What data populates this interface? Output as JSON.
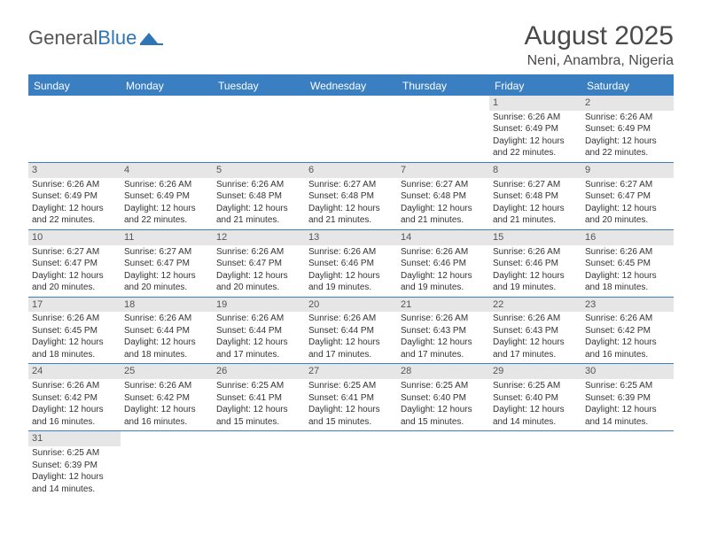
{
  "logo": {
    "general": "General",
    "blue": "Blue"
  },
  "title": {
    "month": "August 2025",
    "location": "Neni, Anambra, Nigeria"
  },
  "colors": {
    "header_bar": "#3a7fc2",
    "day_header_bg": "#e6e6e6",
    "logo_blue": "#2f75b5",
    "text": "#333333",
    "row_divider": "#3a7fc2"
  },
  "weekdays": [
    "Sunday",
    "Monday",
    "Tuesday",
    "Wednesday",
    "Thursday",
    "Friday",
    "Saturday"
  ],
  "weeks": [
    [
      null,
      null,
      null,
      null,
      null,
      {
        "n": "1",
        "sunrise": "Sunrise: 6:26 AM",
        "sunset": "Sunset: 6:49 PM",
        "day1": "Daylight: 12 hours",
        "day2": "and 22 minutes."
      },
      {
        "n": "2",
        "sunrise": "Sunrise: 6:26 AM",
        "sunset": "Sunset: 6:49 PM",
        "day1": "Daylight: 12 hours",
        "day2": "and 22 minutes."
      }
    ],
    [
      {
        "n": "3",
        "sunrise": "Sunrise: 6:26 AM",
        "sunset": "Sunset: 6:49 PM",
        "day1": "Daylight: 12 hours",
        "day2": "and 22 minutes."
      },
      {
        "n": "4",
        "sunrise": "Sunrise: 6:26 AM",
        "sunset": "Sunset: 6:49 PM",
        "day1": "Daylight: 12 hours",
        "day2": "and 22 minutes."
      },
      {
        "n": "5",
        "sunrise": "Sunrise: 6:26 AM",
        "sunset": "Sunset: 6:48 PM",
        "day1": "Daylight: 12 hours",
        "day2": "and 21 minutes."
      },
      {
        "n": "6",
        "sunrise": "Sunrise: 6:27 AM",
        "sunset": "Sunset: 6:48 PM",
        "day1": "Daylight: 12 hours",
        "day2": "and 21 minutes."
      },
      {
        "n": "7",
        "sunrise": "Sunrise: 6:27 AM",
        "sunset": "Sunset: 6:48 PM",
        "day1": "Daylight: 12 hours",
        "day2": "and 21 minutes."
      },
      {
        "n": "8",
        "sunrise": "Sunrise: 6:27 AM",
        "sunset": "Sunset: 6:48 PM",
        "day1": "Daylight: 12 hours",
        "day2": "and 21 minutes."
      },
      {
        "n": "9",
        "sunrise": "Sunrise: 6:27 AM",
        "sunset": "Sunset: 6:47 PM",
        "day1": "Daylight: 12 hours",
        "day2": "and 20 minutes."
      }
    ],
    [
      {
        "n": "10",
        "sunrise": "Sunrise: 6:27 AM",
        "sunset": "Sunset: 6:47 PM",
        "day1": "Daylight: 12 hours",
        "day2": "and 20 minutes."
      },
      {
        "n": "11",
        "sunrise": "Sunrise: 6:27 AM",
        "sunset": "Sunset: 6:47 PM",
        "day1": "Daylight: 12 hours",
        "day2": "and 20 minutes."
      },
      {
        "n": "12",
        "sunrise": "Sunrise: 6:26 AM",
        "sunset": "Sunset: 6:47 PM",
        "day1": "Daylight: 12 hours",
        "day2": "and 20 minutes."
      },
      {
        "n": "13",
        "sunrise": "Sunrise: 6:26 AM",
        "sunset": "Sunset: 6:46 PM",
        "day1": "Daylight: 12 hours",
        "day2": "and 19 minutes."
      },
      {
        "n": "14",
        "sunrise": "Sunrise: 6:26 AM",
        "sunset": "Sunset: 6:46 PM",
        "day1": "Daylight: 12 hours",
        "day2": "and 19 minutes."
      },
      {
        "n": "15",
        "sunrise": "Sunrise: 6:26 AM",
        "sunset": "Sunset: 6:46 PM",
        "day1": "Daylight: 12 hours",
        "day2": "and 19 minutes."
      },
      {
        "n": "16",
        "sunrise": "Sunrise: 6:26 AM",
        "sunset": "Sunset: 6:45 PM",
        "day1": "Daylight: 12 hours",
        "day2": "and 18 minutes."
      }
    ],
    [
      {
        "n": "17",
        "sunrise": "Sunrise: 6:26 AM",
        "sunset": "Sunset: 6:45 PM",
        "day1": "Daylight: 12 hours",
        "day2": "and 18 minutes."
      },
      {
        "n": "18",
        "sunrise": "Sunrise: 6:26 AM",
        "sunset": "Sunset: 6:44 PM",
        "day1": "Daylight: 12 hours",
        "day2": "and 18 minutes."
      },
      {
        "n": "19",
        "sunrise": "Sunrise: 6:26 AM",
        "sunset": "Sunset: 6:44 PM",
        "day1": "Daylight: 12 hours",
        "day2": "and 17 minutes."
      },
      {
        "n": "20",
        "sunrise": "Sunrise: 6:26 AM",
        "sunset": "Sunset: 6:44 PM",
        "day1": "Daylight: 12 hours",
        "day2": "and 17 minutes."
      },
      {
        "n": "21",
        "sunrise": "Sunrise: 6:26 AM",
        "sunset": "Sunset: 6:43 PM",
        "day1": "Daylight: 12 hours",
        "day2": "and 17 minutes."
      },
      {
        "n": "22",
        "sunrise": "Sunrise: 6:26 AM",
        "sunset": "Sunset: 6:43 PM",
        "day1": "Daylight: 12 hours",
        "day2": "and 17 minutes."
      },
      {
        "n": "23",
        "sunrise": "Sunrise: 6:26 AM",
        "sunset": "Sunset: 6:42 PM",
        "day1": "Daylight: 12 hours",
        "day2": "and 16 minutes."
      }
    ],
    [
      {
        "n": "24",
        "sunrise": "Sunrise: 6:26 AM",
        "sunset": "Sunset: 6:42 PM",
        "day1": "Daylight: 12 hours",
        "day2": "and 16 minutes."
      },
      {
        "n": "25",
        "sunrise": "Sunrise: 6:26 AM",
        "sunset": "Sunset: 6:42 PM",
        "day1": "Daylight: 12 hours",
        "day2": "and 16 minutes."
      },
      {
        "n": "26",
        "sunrise": "Sunrise: 6:25 AM",
        "sunset": "Sunset: 6:41 PM",
        "day1": "Daylight: 12 hours",
        "day2": "and 15 minutes."
      },
      {
        "n": "27",
        "sunrise": "Sunrise: 6:25 AM",
        "sunset": "Sunset: 6:41 PM",
        "day1": "Daylight: 12 hours",
        "day2": "and 15 minutes."
      },
      {
        "n": "28",
        "sunrise": "Sunrise: 6:25 AM",
        "sunset": "Sunset: 6:40 PM",
        "day1": "Daylight: 12 hours",
        "day2": "and 15 minutes."
      },
      {
        "n": "29",
        "sunrise": "Sunrise: 6:25 AM",
        "sunset": "Sunset: 6:40 PM",
        "day1": "Daylight: 12 hours",
        "day2": "and 14 minutes."
      },
      {
        "n": "30",
        "sunrise": "Sunrise: 6:25 AM",
        "sunset": "Sunset: 6:39 PM",
        "day1": "Daylight: 12 hours",
        "day2": "and 14 minutes."
      }
    ],
    [
      {
        "n": "31",
        "sunrise": "Sunrise: 6:25 AM",
        "sunset": "Sunset: 6:39 PM",
        "day1": "Daylight: 12 hours",
        "day2": "and 14 minutes."
      },
      null,
      null,
      null,
      null,
      null,
      null
    ]
  ]
}
